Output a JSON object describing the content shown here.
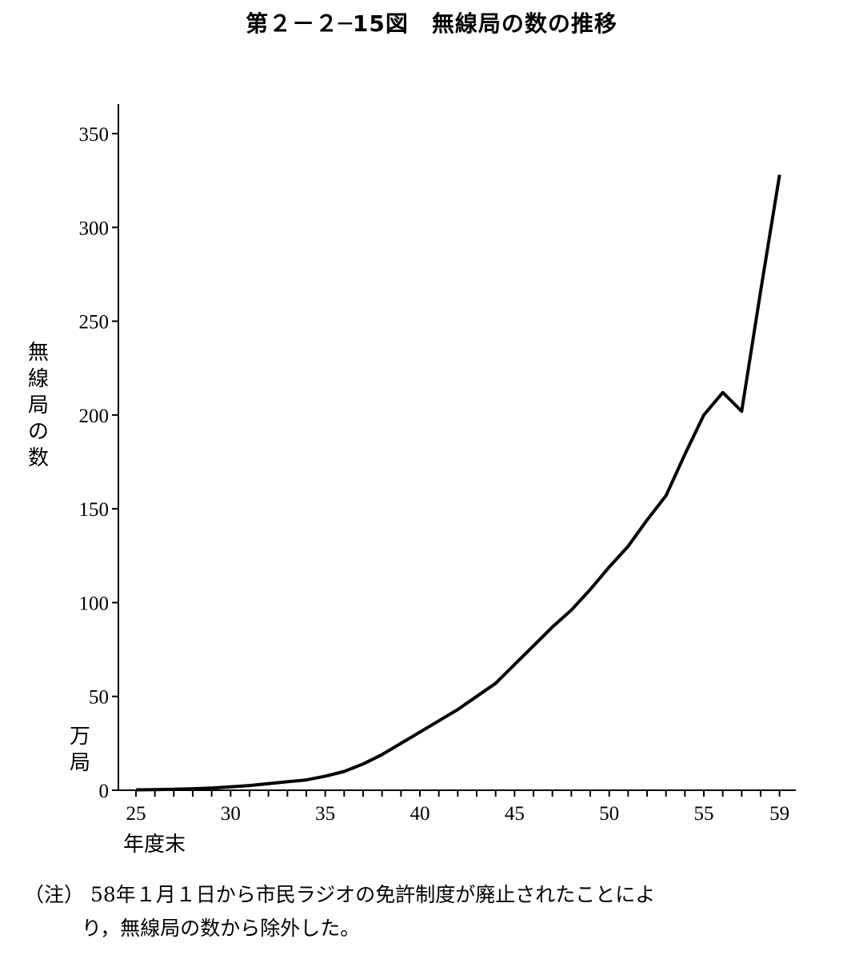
{
  "title": "第２－２─15図　無線局の数の推移",
  "y_axis_label": "無線局の数",
  "y_unit": "万局",
  "x_axis_label": "年度末",
  "note": {
    "prefix": "（注）",
    "line1": "58年１月１日から市民ラジオの免許制度が廃止されたことによ",
    "line2": "り，無線局の数から除外した。"
  },
  "chart_data": {
    "type": "line",
    "title": "第２－２─15図　無線局の数の推移",
    "xlabel": "年度末",
    "ylabel": "無線局の数",
    "unit": "万局",
    "xlim": [
      24.3,
      61
    ],
    "ylim": [
      0,
      365
    ],
    "yticks": [
      0,
      50,
      100,
      150,
      200,
      250,
      300,
      350
    ],
    "xticks": [
      25,
      30,
      35,
      40,
      45,
      50,
      55,
      59
    ],
    "grid": false,
    "series": [
      {
        "name": "",
        "x": [
          25,
          26,
          27,
          28,
          29,
          30,
          31,
          32,
          33,
          34,
          35,
          36,
          37,
          38,
          39,
          40,
          41,
          42,
          43,
          44,
          45,
          46,
          47,
          48,
          49,
          50,
          51,
          52,
          53,
          54,
          55,
          56,
          57,
          58,
          59
        ],
        "values": [
          0.2,
          0.3,
          0.5,
          0.8,
          1.2,
          1.8,
          2.5,
          3.5,
          4.5,
          5.5,
          7.5,
          10,
          14,
          19,
          25,
          31,
          37,
          43,
          50,
          57,
          67,
          77,
          87,
          96,
          107,
          119,
          130,
          144,
          157,
          179,
          200,
          212,
          202,
          266,
          328
        ]
      }
    ]
  }
}
